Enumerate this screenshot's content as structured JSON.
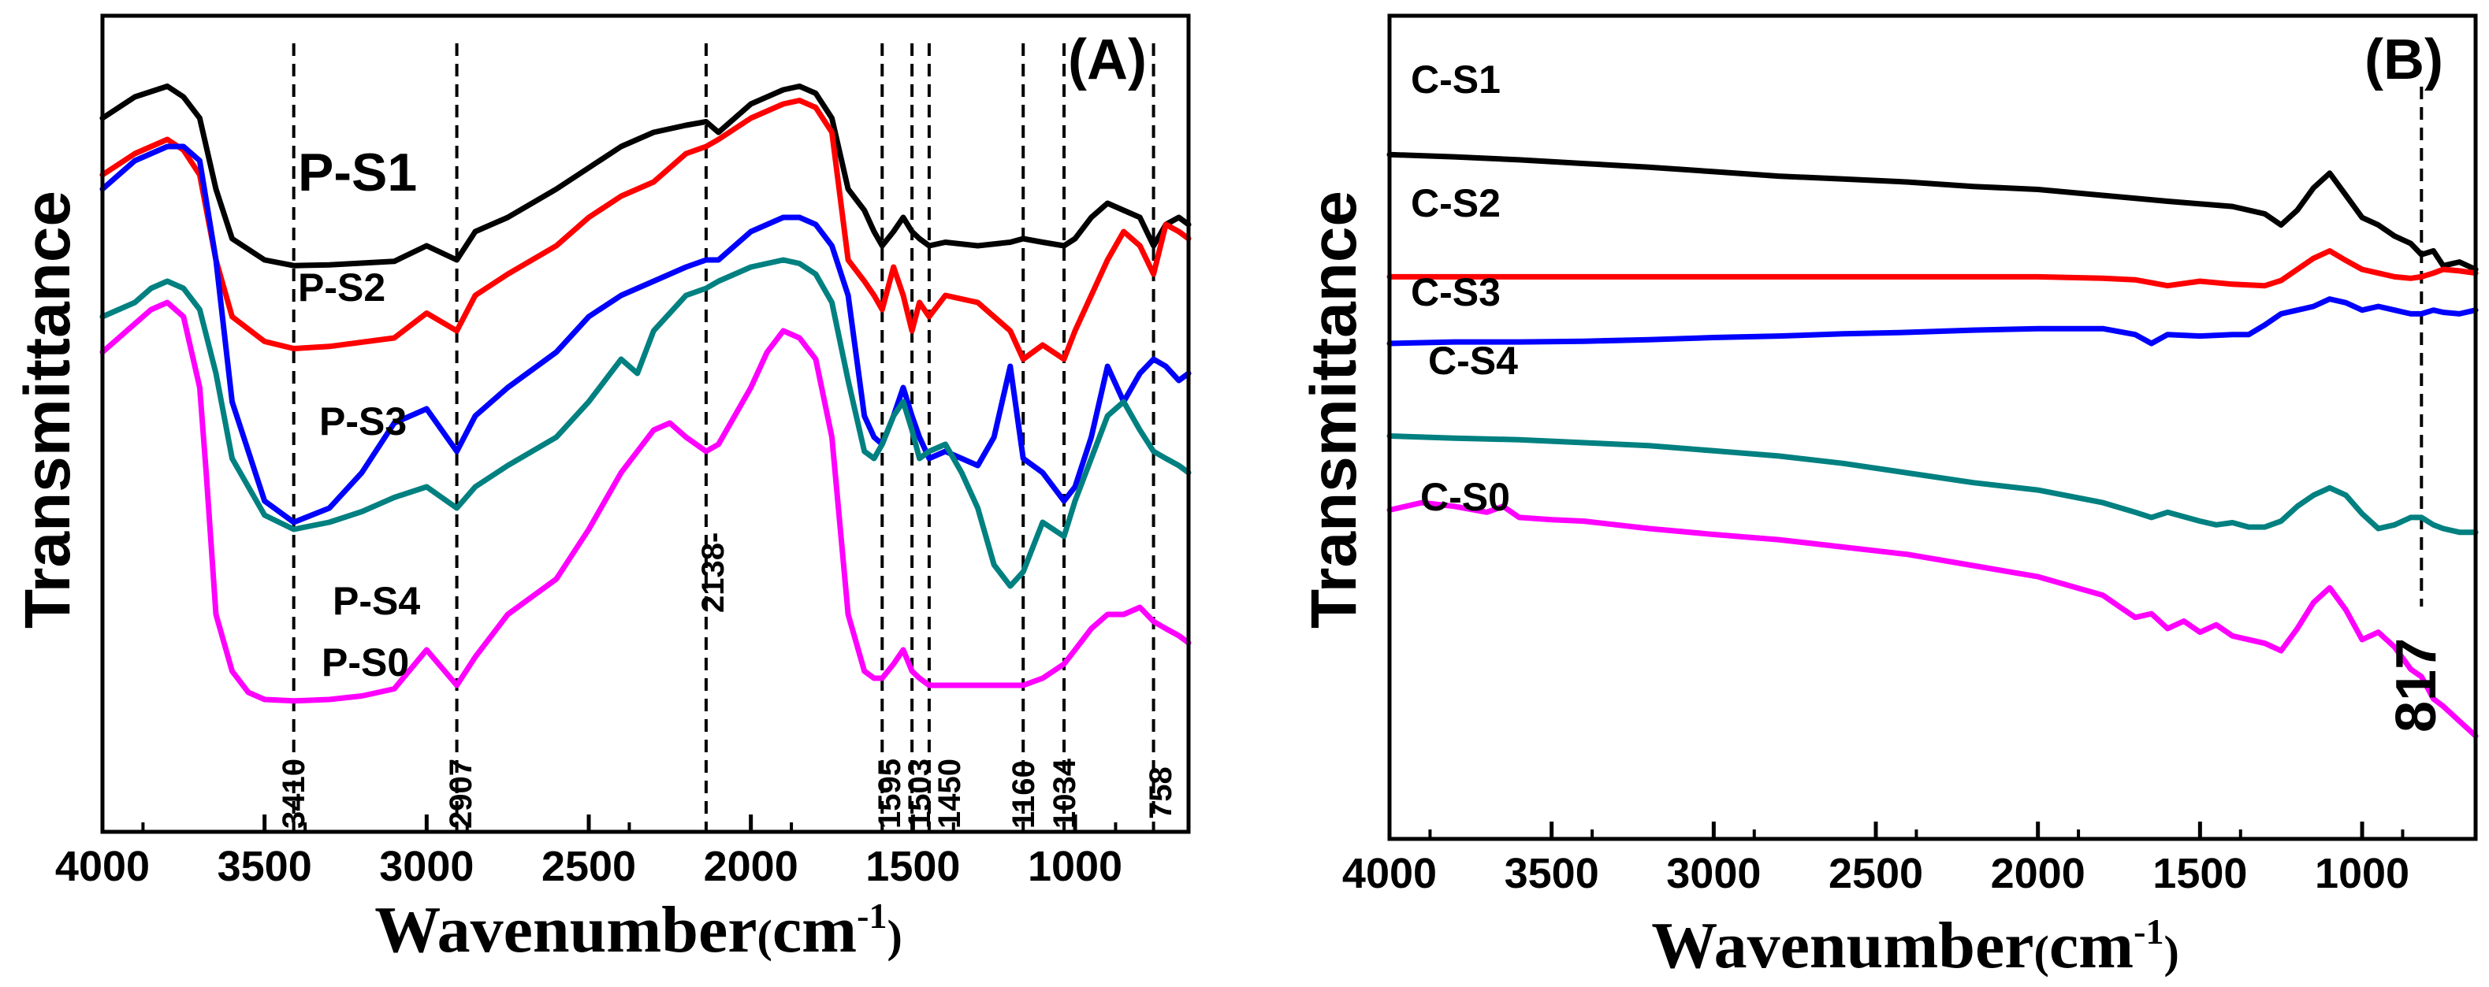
{
  "chart_data": [
    {
      "type": "line",
      "panel_label": "(A)",
      "xlabel": "Wavenumber",
      "xunit_open": "(",
      "xunit_base": "cm",
      "xunit_sup": "-1",
      "xunit_close": ")",
      "ylabel": "Transmittance",
      "xlim": [
        4000,
        650
      ],
      "ylim": [
        0,
        1
      ],
      "x_ticks": [
        "4000",
        "3500",
        "3000",
        "2500",
        "2000",
        "1500",
        "1000"
      ],
      "x_tick_values": [
        4000,
        3500,
        3000,
        2500,
        2000,
        1500,
        1000
      ],
      "reference_lines": [
        {
          "x": 3410,
          "label": "3410"
        },
        {
          "x": 2907,
          "label": "2907"
        },
        {
          "x": 2138,
          "label": "2138-"
        },
        {
          "x": 1595,
          "label": "1595"
        },
        {
          "x": 1503,
          "label": "1503"
        },
        {
          "x": 1450,
          "label": "1450"
        },
        {
          "x": 1160,
          "label": "1160"
        },
        {
          "x": 1034,
          "label": "1034"
        },
        {
          "x": 758,
          "label": "758"
        }
      ],
      "series": [
        {
          "name": "P-S1",
          "color": "#000000",
          "x": [
            4000,
            3900,
            3800,
            3750,
            3700,
            3650,
            3600,
            3500,
            3410,
            3300,
            3100,
            3000,
            2907,
            2850,
            2750,
            2600,
            2500,
            2400,
            2300,
            2200,
            2138,
            2100,
            2000,
            1900,
            1850,
            1800,
            1750,
            1700,
            1650,
            1620,
            1595,
            1560,
            1530,
            1503,
            1480,
            1450,
            1400,
            1300,
            1200,
            1160,
            1100,
            1034,
            1000,
            950,
            900,
            850,
            800,
            758,
            720,
            680,
            650
          ],
          "y": [
            0.9,
            0.93,
            0.945,
            0.93,
            0.9,
            0.8,
            0.73,
            0.7,
            0.692,
            0.693,
            0.698,
            0.72,
            0.7,
            0.74,
            0.76,
            0.8,
            0.83,
            0.86,
            0.88,
            0.89,
            0.895,
            0.88,
            0.92,
            0.94,
            0.945,
            0.935,
            0.9,
            0.8,
            0.77,
            0.74,
            0.72,
            0.74,
            0.76,
            0.74,
            0.73,
            0.72,
            0.725,
            0.72,
            0.725,
            0.73,
            0.725,
            0.72,
            0.73,
            0.76,
            0.78,
            0.77,
            0.76,
            0.72,
            0.75,
            0.76,
            0.75
          ]
        },
        {
          "name": "P-S2",
          "color": "#ff0000",
          "x": [
            4000,
            3900,
            3800,
            3750,
            3700,
            3650,
            3600,
            3500,
            3410,
            3300,
            3100,
            3000,
            2907,
            2850,
            2750,
            2600,
            2500,
            2400,
            2300,
            2200,
            2138,
            2100,
            2000,
            1900,
            1850,
            1800,
            1750,
            1700,
            1650,
            1620,
            1595,
            1560,
            1530,
            1503,
            1480,
            1450,
            1400,
            1300,
            1200,
            1160,
            1100,
            1034,
            1000,
            950,
            900,
            850,
            800,
            758,
            720,
            680,
            650
          ],
          "y": [
            0.82,
            0.85,
            0.87,
            0.855,
            0.82,
            0.7,
            0.62,
            0.585,
            0.575,
            0.578,
            0.59,
            0.625,
            0.6,
            0.65,
            0.68,
            0.72,
            0.76,
            0.79,
            0.81,
            0.85,
            0.86,
            0.87,
            0.9,
            0.92,
            0.925,
            0.915,
            0.88,
            0.7,
            0.67,
            0.65,
            0.63,
            0.69,
            0.65,
            0.6,
            0.64,
            0.62,
            0.65,
            0.64,
            0.6,
            0.56,
            0.58,
            0.56,
            0.6,
            0.65,
            0.7,
            0.74,
            0.72,
            0.68,
            0.75,
            0.74,
            0.73
          ]
        },
        {
          "name": "P-S3",
          "color": "#0000ff",
          "x": [
            4000,
            3900,
            3800,
            3750,
            3700,
            3650,
            3600,
            3500,
            3410,
            3300,
            3200,
            3100,
            3000,
            2907,
            2850,
            2750,
            2600,
            2500,
            2400,
            2300,
            2200,
            2138,
            2100,
            2000,
            1900,
            1850,
            1800,
            1750,
            1700,
            1650,
            1620,
            1595,
            1560,
            1530,
            1503,
            1480,
            1450,
            1400,
            1300,
            1250,
            1200,
            1160,
            1100,
            1034,
            1000,
            950,
            900,
            850,
            800,
            758,
            720,
            680,
            650
          ],
          "y": [
            0.8,
            0.84,
            0.86,
            0.86,
            0.84,
            0.7,
            0.5,
            0.36,
            0.33,
            0.35,
            0.4,
            0.47,
            0.49,
            0.43,
            0.48,
            0.52,
            0.57,
            0.62,
            0.65,
            0.67,
            0.69,
            0.7,
            0.7,
            0.74,
            0.76,
            0.76,
            0.75,
            0.72,
            0.65,
            0.48,
            0.45,
            0.44,
            0.48,
            0.52,
            0.48,
            0.45,
            0.42,
            0.43,
            0.41,
            0.45,
            0.55,
            0.42,
            0.4,
            0.36,
            0.38,
            0.45,
            0.55,
            0.5,
            0.54,
            0.56,
            0.55,
            0.53,
            0.54
          ]
        },
        {
          "name": "P-S4",
          "color": "#008080",
          "x": [
            4000,
            3900,
            3850,
            3800,
            3750,
            3700,
            3650,
            3600,
            3500,
            3410,
            3300,
            3200,
            3100,
            3000,
            2907,
            2850,
            2750,
            2600,
            2500,
            2400,
            2350,
            2300,
            2200,
            2138,
            2100,
            2000,
            1900,
            1850,
            1800,
            1750,
            1700,
            1650,
            1620,
            1595,
            1560,
            1530,
            1503,
            1480,
            1450,
            1400,
            1350,
            1300,
            1250,
            1200,
            1160,
            1100,
            1034,
            1000,
            950,
            900,
            850,
            800,
            758,
            720,
            680,
            650
          ],
          "y": [
            0.62,
            0.64,
            0.66,
            0.67,
            0.66,
            0.63,
            0.54,
            0.42,
            0.34,
            0.32,
            0.33,
            0.345,
            0.365,
            0.38,
            0.35,
            0.38,
            0.41,
            0.45,
            0.5,
            0.56,
            0.54,
            0.6,
            0.65,
            0.66,
            0.67,
            0.69,
            0.7,
            0.695,
            0.68,
            0.64,
            0.53,
            0.43,
            0.42,
            0.44,
            0.48,
            0.5,
            0.46,
            0.42,
            0.43,
            0.44,
            0.4,
            0.35,
            0.27,
            0.24,
            0.26,
            0.33,
            0.31,
            0.36,
            0.42,
            0.48,
            0.5,
            0.46,
            0.43,
            0.42,
            0.41,
            0.4
          ]
        },
        {
          "name": "P-S0",
          "color": "#ff00ff",
          "x": [
            4000,
            3900,
            3850,
            3800,
            3750,
            3700,
            3680,
            3650,
            3600,
            3550,
            3500,
            3410,
            3300,
            3200,
            3100,
            3000,
            2907,
            2850,
            2750,
            2600,
            2500,
            2400,
            2300,
            2250,
            2200,
            2138,
            2100,
            2000,
            1950,
            1900,
            1850,
            1800,
            1750,
            1700,
            1650,
            1620,
            1595,
            1560,
            1530,
            1503,
            1480,
            1450,
            1400,
            1300,
            1200,
            1160,
            1100,
            1034,
            1000,
            950,
            900,
            850,
            800,
            758,
            720,
            680,
            650
          ],
          "y": [
            0.57,
            0.61,
            0.63,
            0.64,
            0.62,
            0.52,
            0.4,
            0.2,
            0.12,
            0.09,
            0.08,
            0.078,
            0.08,
            0.085,
            0.095,
            0.15,
            0.1,
            0.14,
            0.2,
            0.25,
            0.32,
            0.4,
            0.46,
            0.47,
            0.45,
            0.43,
            0.44,
            0.52,
            0.57,
            0.6,
            0.59,
            0.56,
            0.45,
            0.2,
            0.12,
            0.11,
            0.11,
            0.13,
            0.15,
            0.12,
            0.11,
            0.1,
            0.1,
            0.1,
            0.1,
            0.1,
            0.11,
            0.13,
            0.15,
            0.18,
            0.2,
            0.2,
            0.21,
            0.19,
            0.18,
            0.17,
            0.16
          ]
        }
      ],
      "curve_labels": [
        {
          "series": "P-S1",
          "text": "P-S1"
        },
        {
          "series": "P-S2",
          "text": "P-S2"
        },
        {
          "series": "P-S3",
          "text": "P-S3"
        },
        {
          "series": "P-S4",
          "text": "P-S4"
        },
        {
          "series": "P-S0",
          "text": "P-S0"
        }
      ]
    },
    {
      "type": "line",
      "panel_label": "(B)",
      "xlabel": "Wavenumber",
      "xunit_open": "(",
      "xunit_base": "cm",
      "xunit_sup": "-1",
      "xunit_close": ")",
      "ylabel": "Transmittance",
      "xlim": [
        4000,
        650
      ],
      "ylim": [
        0,
        1
      ],
      "x_ticks": [
        "4000",
        "3500",
        "3000",
        "2500",
        "2000",
        "1500",
        "1000"
      ],
      "x_tick_values": [
        4000,
        3500,
        3000,
        2500,
        2000,
        1500,
        1000
      ],
      "reference_lines": [
        {
          "x": 817,
          "label": "817"
        }
      ],
      "series": [
        {
          "name": "C-S1",
          "color": "#000000",
          "x": [
            4000,
            3800,
            3600,
            3400,
            3200,
            3000,
            2800,
            2600,
            2400,
            2200,
            2000,
            1800,
            1600,
            1400,
            1300,
            1250,
            1200,
            1150,
            1100,
            1050,
            1000,
            950,
            900,
            850,
            817,
            780,
            750,
            700,
            650
          ],
          "y": [
            0.855,
            0.852,
            0.848,
            0.843,
            0.838,
            0.832,
            0.826,
            0.822,
            0.818,
            0.812,
            0.808,
            0.8,
            0.792,
            0.785,
            0.775,
            0.76,
            0.78,
            0.81,
            0.83,
            0.8,
            0.77,
            0.76,
            0.745,
            0.735,
            0.72,
            0.725,
            0.705,
            0.71,
            0.7
          ]
        },
        {
          "name": "C-S2",
          "color": "#ff0000",
          "x": [
            4000,
            3800,
            3600,
            3400,
            3200,
            3000,
            2800,
            2600,
            2400,
            2200,
            2000,
            1800,
            1700,
            1600,
            1500,
            1400,
            1300,
            1250,
            1200,
            1150,
            1100,
            1050,
            1000,
            950,
            900,
            850,
            817,
            780,
            750,
            700,
            650
          ],
          "y": [
            0.69,
            0.69,
            0.69,
            0.69,
            0.69,
            0.69,
            0.69,
            0.69,
            0.69,
            0.69,
            0.69,
            0.688,
            0.686,
            0.678,
            0.684,
            0.68,
            0.678,
            0.685,
            0.7,
            0.715,
            0.725,
            0.712,
            0.7,
            0.695,
            0.69,
            0.688,
            0.69,
            0.695,
            0.7,
            0.698,
            0.695
          ]
        },
        {
          "name": "C-S3",
          "color": "#0000ff",
          "x": [
            4000,
            3800,
            3600,
            3400,
            3200,
            3000,
            2800,
            2600,
            2400,
            2200,
            2000,
            1800,
            1700,
            1650,
            1600,
            1500,
            1400,
            1350,
            1300,
            1250,
            1200,
            1150,
            1100,
            1050,
            1000,
            950,
            900,
            850,
            817,
            780,
            750,
            700,
            650
          ],
          "y": [
            0.6,
            0.602,
            0.602,
            0.603,
            0.605,
            0.608,
            0.61,
            0.613,
            0.615,
            0.618,
            0.62,
            0.62,
            0.612,
            0.6,
            0.612,
            0.61,
            0.612,
            0.612,
            0.625,
            0.64,
            0.645,
            0.65,
            0.66,
            0.655,
            0.645,
            0.65,
            0.645,
            0.64,
            0.64,
            0.645,
            0.642,
            0.64,
            0.645
          ]
        },
        {
          "name": "C-S4",
          "color": "#008080",
          "x": [
            4000,
            3800,
            3600,
            3400,
            3200,
            3000,
            2800,
            2600,
            2400,
            2200,
            2000,
            1800,
            1700,
            1650,
            1600,
            1500,
            1450,
            1400,
            1350,
            1300,
            1250,
            1200,
            1150,
            1100,
            1050,
            1000,
            950,
            900,
            850,
            817,
            780,
            750,
            700,
            650
          ],
          "y": [
            0.475,
            0.472,
            0.47,
            0.466,
            0.462,
            0.455,
            0.448,
            0.438,
            0.425,
            0.412,
            0.402,
            0.385,
            0.372,
            0.365,
            0.372,
            0.36,
            0.355,
            0.358,
            0.352,
            0.352,
            0.36,
            0.38,
            0.395,
            0.405,
            0.395,
            0.37,
            0.35,
            0.355,
            0.365,
            0.365,
            0.355,
            0.35,
            0.345,
            0.345
          ]
        },
        {
          "name": "C-S0",
          "color": "#ff00ff",
          "x": [
            4000,
            3900,
            3800,
            3700,
            3650,
            3600,
            3500,
            3400,
            3200,
            3000,
            2800,
            2600,
            2400,
            2200,
            2000,
            1800,
            1750,
            1700,
            1650,
            1600,
            1550,
            1500,
            1450,
            1400,
            1300,
            1250,
            1200,
            1150,
            1100,
            1050,
            1000,
            950,
            900,
            850,
            817,
            780,
            750,
            700,
            650
          ],
          "y": [
            0.375,
            0.385,
            0.38,
            0.372,
            0.38,
            0.365,
            0.362,
            0.36,
            0.35,
            0.342,
            0.335,
            0.325,
            0.315,
            0.3,
            0.285,
            0.26,
            0.245,
            0.23,
            0.235,
            0.215,
            0.225,
            0.21,
            0.22,
            0.205,
            0.195,
            0.185,
            0.215,
            0.25,
            0.27,
            0.24,
            0.2,
            0.21,
            0.19,
            0.16,
            0.15,
            0.12,
            0.11,
            0.09,
            0.07
          ]
        }
      ],
      "curve_labels": [
        {
          "series": "C-S1",
          "text": "C-S1"
        },
        {
          "series": "C-S2",
          "text": "C-S2"
        },
        {
          "series": "C-S3",
          "text": "C-S3"
        },
        {
          "series": "C-S4",
          "text": "C-S4"
        },
        {
          "series": "C-S0",
          "text": "C-S0"
        }
      ]
    }
  ]
}
